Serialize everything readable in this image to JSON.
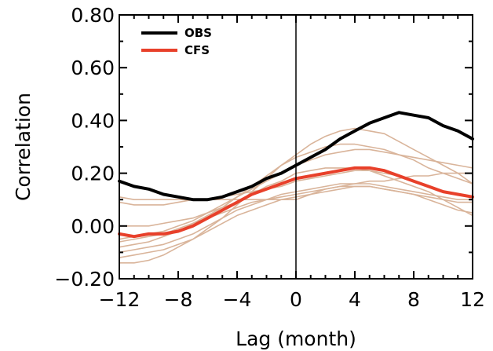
{
  "chart_data": {
    "type": "line",
    "xlabel": "Lag (month)",
    "ylabel": "Correlation",
    "xlim": [
      -12,
      12
    ],
    "ylim": [
      -0.2,
      0.8
    ],
    "x_ticks": [
      -12,
      -8,
      -4,
      0,
      4,
      8,
      12
    ],
    "x_tick_labels": [
      "−12",
      "−8",
      "−4",
      "0",
      "4",
      "8",
      "12"
    ],
    "y_ticks": [
      -0.2,
      0.0,
      0.2,
      0.4,
      0.6,
      0.8
    ],
    "y_tick_labels": [
      "−0.20",
      "0.00",
      "0.20",
      "0.40",
      "0.60",
      "0.80"
    ],
    "reference_line_x": 0,
    "legend_position": "top-left",
    "x": [
      -12,
      -11,
      -10,
      -9,
      -8,
      -7,
      -6,
      -5,
      -4,
      -3,
      -2,
      -1,
      0,
      1,
      2,
      3,
      4,
      5,
      6,
      7,
      8,
      9,
      10,
      11,
      12
    ],
    "series": [
      {
        "name": "OBS",
        "color": "#000000",
        "style": "bold",
        "values": [
          0.17,
          0.15,
          0.14,
          0.12,
          0.11,
          0.1,
          0.1,
          0.11,
          0.13,
          0.15,
          0.18,
          0.2,
          0.23,
          0.26,
          0.29,
          0.33,
          0.36,
          0.39,
          0.41,
          0.43,
          0.42,
          0.41,
          0.38,
          0.36,
          0.33
        ]
      },
      {
        "name": "CFS",
        "color": "#e8402a",
        "style": "bold",
        "values": [
          -0.03,
          -0.04,
          -0.03,
          -0.03,
          -0.02,
          0.0,
          0.03,
          0.06,
          0.09,
          0.12,
          0.14,
          0.16,
          0.18,
          0.19,
          0.2,
          0.21,
          0.22,
          0.22,
          0.21,
          0.19,
          0.17,
          0.15,
          0.13,
          0.12,
          0.11
        ]
      },
      {
        "color": "#d9b49a",
        "style": "thin",
        "values": [
          -0.14,
          -0.14,
          -0.13,
          -0.11,
          -0.08,
          -0.05,
          -0.01,
          0.03,
          0.08,
          0.13,
          0.18,
          0.23,
          0.27,
          0.31,
          0.34,
          0.36,
          0.37,
          0.36,
          0.35,
          0.32,
          0.29,
          0.26,
          0.23,
          0.2,
          0.16
        ]
      },
      {
        "color": "#d9b49a",
        "style": "thin",
        "values": [
          -0.08,
          -0.07,
          -0.06,
          -0.04,
          -0.02,
          0.01,
          0.04,
          0.07,
          0.11,
          0.15,
          0.19,
          0.23,
          0.26,
          0.28,
          0.3,
          0.31,
          0.31,
          0.3,
          0.29,
          0.27,
          0.25,
          0.22,
          0.2,
          0.18,
          0.16
        ]
      },
      {
        "color": "#d9b49a",
        "style": "thin",
        "values": [
          -0.05,
          -0.04,
          -0.03,
          -0.02,
          0.0,
          0.02,
          0.05,
          0.08,
          0.11,
          0.14,
          0.17,
          0.2,
          0.23,
          0.25,
          0.27,
          0.28,
          0.29,
          0.29,
          0.28,
          0.27,
          0.26,
          0.25,
          0.24,
          0.23,
          0.22
        ]
      },
      {
        "color": "#d9b49a",
        "style": "thin",
        "values": [
          0.0,
          0.0,
          0.0,
          0.01,
          0.02,
          0.03,
          0.05,
          0.07,
          0.09,
          0.12,
          0.15,
          0.17,
          0.2,
          0.21,
          0.22,
          0.22,
          0.22,
          0.21,
          0.19,
          0.17,
          0.15,
          0.13,
          0.1,
          0.07,
          0.04
        ]
      },
      {
        "color": "#d9b49a",
        "style": "thin",
        "values": [
          -0.1,
          -0.09,
          -0.08,
          -0.07,
          -0.05,
          -0.03,
          0.0,
          0.03,
          0.06,
          0.08,
          0.1,
          0.11,
          0.12,
          0.13,
          0.14,
          0.15,
          0.15,
          0.15,
          0.14,
          0.13,
          0.12,
          0.11,
          0.1,
          0.09,
          0.09
        ]
      },
      {
        "color": "#d9b49a",
        "style": "thin",
        "values": [
          0.09,
          0.08,
          0.08,
          0.08,
          0.09,
          0.1,
          0.1,
          0.11,
          0.12,
          0.13,
          0.14,
          0.15,
          0.17,
          0.18,
          0.19,
          0.2,
          0.21,
          0.21,
          0.2,
          0.19,
          0.17,
          0.15,
          0.13,
          0.12,
          0.11
        ]
      },
      {
        "color": "#d9b49a",
        "style": "thin",
        "values": [
          0.11,
          0.1,
          0.1,
          0.1,
          0.1,
          0.1,
          0.1,
          0.1,
          0.1,
          0.1,
          0.1,
          0.1,
          0.1,
          0.12,
          0.14,
          0.15,
          0.16,
          0.16,
          0.15,
          0.14,
          0.13,
          0.12,
          0.11,
          0.1,
          0.1
        ]
      },
      {
        "color": "#d9b49a",
        "style": "thin",
        "values": [
          -0.06,
          -0.05,
          -0.04,
          -0.03,
          -0.01,
          0.01,
          0.03,
          0.05,
          0.07,
          0.09,
          0.1,
          0.12,
          0.13,
          0.14,
          0.15,
          0.16,
          0.16,
          0.17,
          0.17,
          0.18,
          0.19,
          0.19,
          0.2,
          0.2,
          0.2
        ]
      },
      {
        "color": "#d9b49a",
        "style": "thin",
        "values": [
          -0.12,
          -0.11,
          -0.1,
          -0.09,
          -0.07,
          -0.05,
          -0.02,
          0.01,
          0.04,
          0.06,
          0.08,
          0.1,
          0.11,
          0.12,
          0.13,
          0.14,
          0.15,
          0.15,
          0.14,
          0.13,
          0.12,
          0.1,
          0.08,
          0.06,
          0.05
        ]
      }
    ]
  }
}
